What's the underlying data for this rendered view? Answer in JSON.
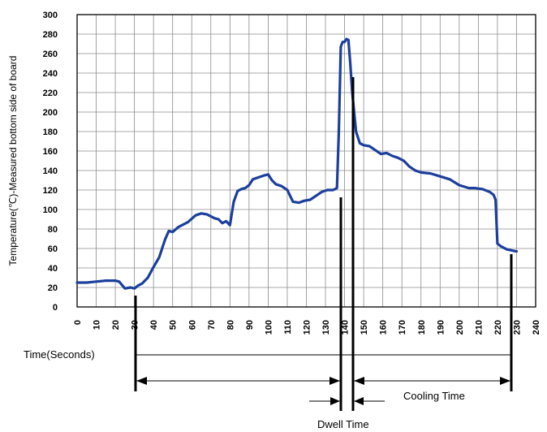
{
  "chart_data": {
    "type": "line",
    "ylabel": "Temperature(℃)-Measured bottom side of board",
    "xlabel": "",
    "xlim": [
      0,
      240
    ],
    "ylim": [
      0,
      300
    ],
    "x_ticks": [
      "0",
      "10",
      "20",
      "30",
      "40",
      "50",
      "60",
      "70",
      "80",
      "90",
      "100",
      "110",
      "120",
      "130",
      "140",
      "150",
      "160",
      "170",
      "180",
      "190",
      "200",
      "210",
      "220",
      "230",
      "240"
    ],
    "y_ticks": [
      "0",
      "20",
      "40",
      "60",
      "80",
      "100",
      "120",
      "140",
      "160",
      "180",
      "200",
      "220",
      "240",
      "260",
      "280",
      "300"
    ],
    "grid": true,
    "line_color": "#1c3f9c",
    "series": [
      {
        "x": [
          0,
          5,
          10,
          15,
          20,
          22,
          25,
          28,
          30,
          32,
          34,
          37,
          40,
          43,
          46,
          48,
          50,
          53,
          55,
          58,
          62,
          65,
          68,
          70,
          72,
          74,
          76,
          78,
          80,
          82,
          84,
          86,
          88,
          90,
          92,
          95,
          98,
          100,
          102,
          104,
          107,
          110,
          113,
          116,
          119,
          122,
          125,
          128,
          131,
          134,
          136,
          137,
          138,
          139,
          140,
          141,
          142,
          143,
          144,
          146,
          148,
          150,
          153,
          156,
          159,
          162,
          165,
          168,
          171,
          174,
          177,
          180,
          185,
          190,
          195,
          200,
          205,
          208,
          212,
          216,
          218,
          219,
          220,
          222,
          225,
          230
        ],
        "y": [
          25,
          25,
          26,
          27,
          27,
          26,
          19,
          20,
          19,
          22,
          24,
          30,
          41,
          51,
          69,
          78,
          77,
          82,
          84,
          87,
          94,
          96,
          95,
          93,
          91,
          90,
          86,
          88,
          84,
          108,
          119,
          121,
          122,
          125,
          131,
          133,
          135,
          136,
          130,
          126,
          124,
          120,
          108,
          107,
          109,
          110,
          114,
          118,
          120,
          120,
          122,
          180,
          267,
          272,
          272,
          275,
          274,
          250,
          220,
          180,
          168,
          166,
          165,
          161,
          157,
          158,
          155,
          153,
          150,
          144,
          140,
          138,
          137,
          134,
          131,
          125,
          122,
          122,
          121,
          118,
          115,
          110,
          65,
          62,
          59,
          57
        ]
      }
    ],
    "annotations": {
      "time_label": "Time(Seconds)",
      "cooling_label": "Cooling Time",
      "dwell_label": "Dwell Time"
    }
  }
}
